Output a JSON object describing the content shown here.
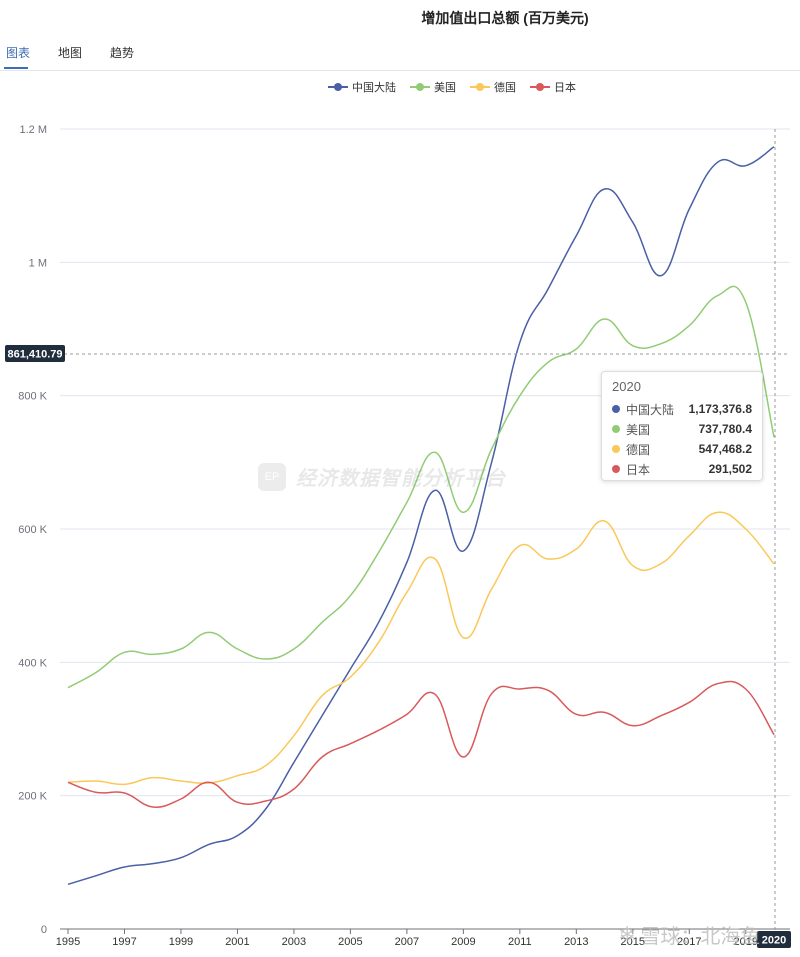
{
  "title": "增加值出口总额 (百万美元)",
  "tabs": [
    {
      "label": "图表",
      "active": true
    },
    {
      "label": "地图",
      "active": false
    },
    {
      "label": "趋势",
      "active": false
    }
  ],
  "crosshair": {
    "y_label": "861,410.79",
    "x_label": "2020"
  },
  "tooltip": {
    "year": "2020",
    "rows": [
      {
        "name": "中国大陆",
        "value": "1,173,376.8",
        "color": "#4a5fa6"
      },
      {
        "name": "美国",
        "value": "737,780.4",
        "color": "#91cc75"
      },
      {
        "name": "德国",
        "value": "547,468.2",
        "color": "#fac858"
      },
      {
        "name": "日本",
        "value": "291,502",
        "color": "#d9595a"
      }
    ]
  },
  "watermark": {
    "logo": "EP",
    "text": "经济数据智能分析平台"
  },
  "footer_watermark": {
    "text": "雪球：北海鱼"
  },
  "chart_data": {
    "type": "line",
    "title": "增加值出口总额 (百万美元)",
    "x": [
      1995,
      1996,
      1997,
      1998,
      1999,
      2000,
      2001,
      2002,
      2003,
      2004,
      2005,
      2006,
      2007,
      2008,
      2009,
      2010,
      2011,
      2012,
      2013,
      2014,
      2015,
      2016,
      2017,
      2018,
      2019,
      2020
    ],
    "x_tick_labels": [
      "1995",
      "1997",
      "1999",
      "2001",
      "2003",
      "2005",
      "2007",
      "2009",
      "2011",
      "2013",
      "2015",
      "2017",
      "2019",
      "2020"
    ],
    "y_ticks": [
      0,
      200000,
      400000,
      600000,
      800000,
      1000000,
      1200000
    ],
    "y_tick_labels": [
      "0",
      "200 K",
      "400 K",
      "600 K",
      "800 K",
      "1 M",
      "1.2 M"
    ],
    "ylim": [
      0,
      1200000
    ],
    "legend_position": "top-center",
    "grid": true,
    "series": [
      {
        "name": "中国大陆",
        "color": "#4a5fa6",
        "values": [
          67000,
          80000,
          93000,
          98000,
          107000,
          127000,
          140000,
          180000,
          250000,
          320000,
          390000,
          460000,
          550000,
          658000,
          567000,
          700000,
          880000,
          960000,
          1040000,
          1110000,
          1060000,
          980000,
          1080000,
          1150000,
          1145000,
          1173376.8
        ]
      },
      {
        "name": "美国",
        "color": "#91cc75",
        "values": [
          362000,
          385000,
          415000,
          412000,
          420000,
          445000,
          420000,
          405000,
          420000,
          460000,
          500000,
          565000,
          640000,
          715000,
          625000,
          720000,
          800000,
          850000,
          870000,
          915000,
          875000,
          878000,
          905000,
          950000,
          940000,
          737780.4
        ]
      },
      {
        "name": "德国",
        "color": "#fac858",
        "values": [
          220000,
          222000,
          217000,
          227000,
          222000,
          219000,
          230000,
          245000,
          290000,
          350000,
          378000,
          430000,
          505000,
          555000,
          437000,
          510000,
          575000,
          555000,
          570000,
          612000,
          545000,
          548000,
          590000,
          625000,
          600000,
          547468.2
        ]
      },
      {
        "name": "日本",
        "color": "#d9595a",
        "values": [
          220000,
          205000,
          204000,
          183000,
          195000,
          220000,
          190000,
          192000,
          210000,
          258000,
          278000,
          298000,
          322000,
          352000,
          258000,
          353000,
          360000,
          358000,
          322000,
          325000,
          305000,
          320000,
          340000,
          368000,
          360000,
          291502
        ]
      }
    ]
  }
}
